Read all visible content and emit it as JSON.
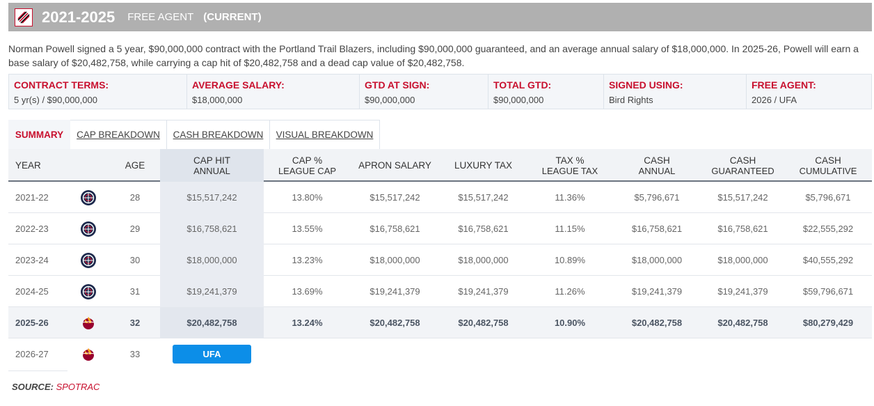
{
  "header": {
    "years": "2021-2025",
    "status": "FREE AGENT",
    "current": "(CURRENT)",
    "logo_icon": "trail-blazers-logo-icon"
  },
  "description": "Norman Powell signed a 5 year, $90,000,000 contract with the Portland Trail Blazers, including $90,000,000 guaranteed, and an average annual salary of $18,000,000. In 2025-26, Powell will earn a base salary of $20,482,758, while carrying a cap hit of $20,482,758 and a dead cap value of $20,482,758.",
  "terms": [
    {
      "label": "CONTRACT TERMS:",
      "value": "5 yr(s) / $90,000,000"
    },
    {
      "label": "AVERAGE SALARY:",
      "value": "$18,000,000"
    },
    {
      "label": "GTD AT SIGN:",
      "value": "$90,000,000"
    },
    {
      "label": "TOTAL GTD:",
      "value": "$90,000,000"
    },
    {
      "label": "SIGNED USING:",
      "value": "Bird Rights"
    },
    {
      "label": "FREE AGENT:",
      "value": "2026 / UFA"
    }
  ],
  "tabs": [
    {
      "label": "SUMMARY",
      "active": true
    },
    {
      "label": "CAP BREAKDOWN"
    },
    {
      "label": "CASH BREAKDOWN"
    },
    {
      "label": "VISUAL BREAKDOWN"
    }
  ],
  "columns": {
    "year": "YEAR",
    "age": "AGE",
    "cap_hit": "CAP HIT",
    "cap_hit_sub": "ANNUAL",
    "cap_pct": "CAP %",
    "cap_pct_sub": "LEAGUE CAP",
    "apron": "APRON SALARY",
    "lux": "LUXURY TAX",
    "tax_pct": "TAX %",
    "tax_pct_sub": "LEAGUE TAX",
    "cash": "CASH",
    "cash_sub": "ANNUAL",
    "cash_g": "CASH",
    "cash_g_sub": "GUARANTEED",
    "cash_c": "CASH",
    "cash_c_sub": "CUMULATIVE"
  },
  "rows": [
    {
      "year": "2021-22",
      "team_icon": "clippers-logo-icon",
      "age": "28",
      "cap_hit": "$15,517,242",
      "cap_pct": "13.80%",
      "apron": "$15,517,242",
      "lux": "$15,517,242",
      "tax_pct": "11.36%",
      "cash": "$5,796,671",
      "cash_g": "$15,517,242",
      "cash_c": "$5,796,671"
    },
    {
      "year": "2022-23",
      "team_icon": "clippers-logo-icon",
      "age": "29",
      "cap_hit": "$16,758,621",
      "cap_pct": "13.55%",
      "apron": "$16,758,621",
      "lux": "$16,758,621",
      "tax_pct": "11.15%",
      "cash": "$16,758,621",
      "cash_g": "$16,758,621",
      "cash_c": "$22,555,292"
    },
    {
      "year": "2023-24",
      "team_icon": "clippers-logo-icon",
      "age": "30",
      "cap_hit": "$18,000,000",
      "cap_pct": "13.23%",
      "apron": "$18,000,000",
      "lux": "$18,000,000",
      "tax_pct": "10.89%",
      "cash": "$18,000,000",
      "cash_g": "$18,000,000",
      "cash_c": "$40,555,292"
    },
    {
      "year": "2024-25",
      "team_icon": "clippers-logo-icon",
      "age": "31",
      "cap_hit": "$19,241,379",
      "cap_pct": "13.69%",
      "apron": "$19,241,379",
      "lux": "$19,241,379",
      "tax_pct": "11.26%",
      "cash": "$19,241,379",
      "cash_g": "$19,241,379",
      "cash_c": "$59,796,671"
    },
    {
      "year": "2025-26",
      "team_icon": "heat-logo-icon",
      "age": "32",
      "cap_hit": "$20,482,758",
      "cap_pct": "13.24%",
      "apron": "$20,482,758",
      "lux": "$20,482,758",
      "tax_pct": "10.90%",
      "cash": "$20,482,758",
      "cash_g": "$20,482,758",
      "cash_c": "$80,279,429"
    }
  ],
  "ufa_row": {
    "year": "2026-27",
    "team_icon": "heat-logo-icon",
    "age": "33",
    "badge": "UFA"
  },
  "source": {
    "label": "SOURCE:",
    "name": "SPOTRAC"
  },
  "colors": {
    "accent": "#c8102e",
    "badge": "#0c8ee8",
    "header_bg": "#b0b0b0"
  }
}
